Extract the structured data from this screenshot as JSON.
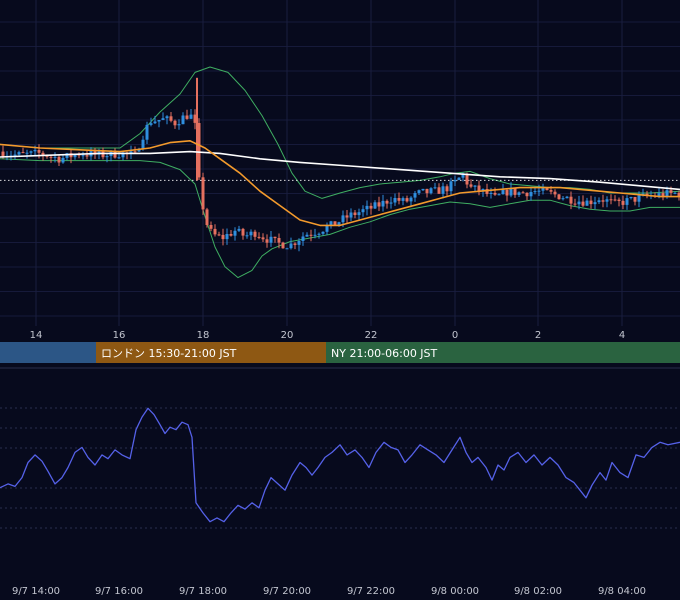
{
  "chart_data": [
    {
      "type": "candlestick",
      "title": "",
      "x_tick_labels": [
        "14",
        "16",
        "18",
        "20",
        "22",
        "0",
        "2",
        "4"
      ],
      "overlays": [
        {
          "name": "",
          "kind": "moving-average-fast",
          "color": "#f39a2c"
        },
        {
          "name": "",
          "kind": "moving-average-slow",
          "color": "#ffffff"
        },
        {
          "name": "",
          "kind": "bollinger-band",
          "color": "#3fae62"
        }
      ],
      "reference_line": {
        "style": "dotted",
        "color": "#ffffff",
        "level": 0.62
      },
      "colors": {
        "up": "#2f8fde",
        "down": "#e5705f"
      },
      "price_path": [
        [
          0,
          0.78
        ],
        [
          16,
          0.76
        ],
        [
          40,
          0.77
        ],
        [
          60,
          0.74
        ],
        [
          80,
          0.77
        ],
        [
          100,
          0.76
        ],
        [
          120,
          0.77
        ],
        [
          135,
          0.76
        ],
        [
          142,
          0.86
        ],
        [
          150,
          0.95
        ],
        [
          165,
          0.96
        ],
        [
          175,
          0.94
        ],
        [
          183,
          0.97
        ],
        [
          190,
          0.99
        ],
        [
          195,
          0.92
        ],
        [
          198,
          0.65
        ],
        [
          205,
          0.4
        ],
        [
          212,
          0.32
        ],
        [
          222,
          0.3
        ],
        [
          235,
          0.34
        ],
        [
          245,
          0.31
        ],
        [
          255,
          0.33
        ],
        [
          265,
          0.3
        ],
        [
          278,
          0.27
        ],
        [
          290,
          0.26
        ],
        [
          305,
          0.32
        ],
        [
          318,
          0.34
        ],
        [
          332,
          0.37
        ],
        [
          348,
          0.42
        ],
        [
          362,
          0.45
        ],
        [
          378,
          0.48
        ],
        [
          392,
          0.52
        ],
        [
          405,
          0.5
        ],
        [
          420,
          0.55
        ],
        [
          436,
          0.56
        ],
        [
          448,
          0.58
        ],
        [
          458,
          0.62
        ],
        [
          462,
          0.66
        ],
        [
          470,
          0.58
        ],
        [
          482,
          0.56
        ],
        [
          495,
          0.52
        ],
        [
          508,
          0.56
        ],
        [
          520,
          0.55
        ],
        [
          535,
          0.56
        ],
        [
          548,
          0.55
        ],
        [
          562,
          0.53
        ],
        [
          575,
          0.51
        ],
        [
          588,
          0.5
        ],
        [
          600,
          0.52
        ],
        [
          615,
          0.49
        ],
        [
          630,
          0.51
        ],
        [
          645,
          0.53
        ],
        [
          660,
          0.54
        ],
        [
          680,
          0.55
        ]
      ],
      "fast_ma": [
        [
          0,
          0.82
        ],
        [
          40,
          0.8
        ],
        [
          80,
          0.79
        ],
        [
          120,
          0.78
        ],
        [
          150,
          0.8
        ],
        [
          170,
          0.83
        ],
        [
          190,
          0.84
        ],
        [
          205,
          0.8
        ],
        [
          220,
          0.74
        ],
        [
          240,
          0.66
        ],
        [
          260,
          0.56
        ],
        [
          280,
          0.48
        ],
        [
          300,
          0.4
        ],
        [
          320,
          0.37
        ],
        [
          340,
          0.37
        ],
        [
          360,
          0.4
        ],
        [
          380,
          0.43
        ],
        [
          400,
          0.46
        ],
        [
          420,
          0.49
        ],
        [
          440,
          0.52
        ],
        [
          460,
          0.55
        ],
        [
          480,
          0.56
        ],
        [
          500,
          0.57
        ],
        [
          520,
          0.58
        ],
        [
          540,
          0.58
        ],
        [
          560,
          0.58
        ],
        [
          580,
          0.57
        ],
        [
          600,
          0.56
        ],
        [
          620,
          0.55
        ],
        [
          640,
          0.54
        ],
        [
          660,
          0.53
        ],
        [
          680,
          0.53
        ]
      ],
      "slow_ma": [
        [
          0,
          0.75
        ],
        [
          50,
          0.76
        ],
        [
          100,
          0.77
        ],
        [
          150,
          0.77
        ],
        [
          190,
          0.78
        ],
        [
          220,
          0.77
        ],
        [
          260,
          0.74
        ],
        [
          300,
          0.72
        ],
        [
          350,
          0.7
        ],
        [
          400,
          0.68
        ],
        [
          450,
          0.66
        ],
        [
          500,
          0.64
        ],
        [
          550,
          0.63
        ],
        [
          600,
          0.61
        ],
        [
          640,
          0.59
        ],
        [
          680,
          0.57
        ]
      ],
      "bb_upper": [
        [
          0,
          0.82
        ],
        [
          40,
          0.8
        ],
        [
          80,
          0.8
        ],
        [
          120,
          0.8
        ],
        [
          140,
          0.88
        ],
        [
          160,
          1.0
        ],
        [
          180,
          1.1
        ],
        [
          195,
          1.22
        ],
        [
          210,
          1.25
        ],
        [
          228,
          1.22
        ],
        [
          245,
          1.12
        ],
        [
          262,
          0.98
        ],
        [
          278,
          0.82
        ],
        [
          292,
          0.66
        ],
        [
          305,
          0.56
        ],
        [
          322,
          0.52
        ],
        [
          340,
          0.55
        ],
        [
          360,
          0.58
        ],
        [
          380,
          0.6
        ],
        [
          400,
          0.61
        ],
        [
          420,
          0.62
        ],
        [
          440,
          0.64
        ],
        [
          455,
          0.66
        ],
        [
          470,
          0.67
        ],
        [
          490,
          0.63
        ],
        [
          510,
          0.6
        ],
        [
          530,
          0.59
        ],
        [
          550,
          0.58
        ],
        [
          570,
          0.58
        ],
        [
          590,
          0.57
        ],
        [
          610,
          0.55
        ],
        [
          630,
          0.55
        ],
        [
          650,
          0.55
        ],
        [
          680,
          0.56
        ]
      ],
      "bb_lower": [
        [
          0,
          0.74
        ],
        [
          40,
          0.73
        ],
        [
          80,
          0.73
        ],
        [
          120,
          0.73
        ],
        [
          140,
          0.73
        ],
        [
          160,
          0.72
        ],
        [
          180,
          0.68
        ],
        [
          195,
          0.6
        ],
        [
          205,
          0.42
        ],
        [
          215,
          0.25
        ],
        [
          225,
          0.14
        ],
        [
          238,
          0.08
        ],
        [
          252,
          0.12
        ],
        [
          262,
          0.2
        ],
        [
          272,
          0.24
        ],
        [
          290,
          0.28
        ],
        [
          310,
          0.3
        ],
        [
          330,
          0.32
        ],
        [
          350,
          0.36
        ],
        [
          370,
          0.39
        ],
        [
          390,
          0.43
        ],
        [
          410,
          0.46
        ],
        [
          430,
          0.48
        ],
        [
          450,
          0.5
        ],
        [
          470,
          0.49
        ],
        [
          490,
          0.47
        ],
        [
          510,
          0.49
        ],
        [
          530,
          0.51
        ],
        [
          550,
          0.51
        ],
        [
          570,
          0.48
        ],
        [
          590,
          0.46
        ],
        [
          610,
          0.45
        ],
        [
          630,
          0.45
        ],
        [
          650,
          0.47
        ],
        [
          680,
          0.47
        ]
      ]
    },
    {
      "type": "line",
      "title": "",
      "x_tick_labels": [
        "9/7 14:00",
        "9/7 16:00",
        "9/7 18:00",
        "9/7 20:00",
        "9/7 22:00",
        "9/8 00:00",
        "9/8 02:00",
        "9/8 04:00"
      ],
      "color": "#5561e8",
      "series": [
        [
          0,
          0.32
        ],
        [
          8,
          0.35
        ],
        [
          15,
          0.33
        ],
        [
          22,
          0.4
        ],
        [
          28,
          0.52
        ],
        [
          35,
          0.58
        ],
        [
          42,
          0.53
        ],
        [
          48,
          0.45
        ],
        [
          55,
          0.35
        ],
        [
          62,
          0.4
        ],
        [
          68,
          0.48
        ],
        [
          75,
          0.6
        ],
        [
          82,
          0.64
        ],
        [
          88,
          0.56
        ],
        [
          95,
          0.5
        ],
        [
          102,
          0.58
        ],
        [
          108,
          0.55
        ],
        [
          115,
          0.62
        ],
        [
          122,
          0.58
        ],
        [
          130,
          0.55
        ],
        [
          136,
          0.78
        ],
        [
          142,
          0.88
        ],
        [
          148,
          0.95
        ],
        [
          154,
          0.9
        ],
        [
          160,
          0.82
        ],
        [
          165,
          0.75
        ],
        [
          170,
          0.8
        ],
        [
          176,
          0.78
        ],
        [
          182,
          0.84
        ],
        [
          188,
          0.82
        ],
        [
          192,
          0.72
        ],
        [
          196,
          0.2
        ],
        [
          203,
          0.12
        ],
        [
          210,
          0.05
        ],
        [
          217,
          0.08
        ],
        [
          224,
          0.05
        ],
        [
          231,
          0.12
        ],
        [
          238,
          0.18
        ],
        [
          245,
          0.15
        ],
        [
          252,
          0.2
        ],
        [
          259,
          0.16
        ],
        [
          265,
          0.3
        ],
        [
          271,
          0.4
        ],
        [
          278,
          0.35
        ],
        [
          285,
          0.3
        ],
        [
          292,
          0.42
        ],
        [
          300,
          0.52
        ],
        [
          306,
          0.48
        ],
        [
          312,
          0.42
        ],
        [
          318,
          0.48
        ],
        [
          325,
          0.56
        ],
        [
          332,
          0.6
        ],
        [
          340,
          0.66
        ],
        [
          347,
          0.58
        ],
        [
          355,
          0.62
        ],
        [
          362,
          0.56
        ],
        [
          369,
          0.48
        ],
        [
          376,
          0.6
        ],
        [
          384,
          0.68
        ],
        [
          391,
          0.64
        ],
        [
          398,
          0.62
        ],
        [
          405,
          0.52
        ],
        [
          412,
          0.58
        ],
        [
          420,
          0.66
        ],
        [
          428,
          0.62
        ],
        [
          436,
          0.58
        ],
        [
          444,
          0.52
        ],
        [
          452,
          0.62
        ],
        [
          460,
          0.72
        ],
        [
          466,
          0.6
        ],
        [
          472,
          0.52
        ],
        [
          478,
          0.56
        ],
        [
          486,
          0.48
        ],
        [
          492,
          0.38
        ],
        [
          498,
          0.5
        ],
        [
          504,
          0.46
        ],
        [
          510,
          0.56
        ],
        [
          518,
          0.6
        ],
        [
          526,
          0.52
        ],
        [
          534,
          0.58
        ],
        [
          542,
          0.5
        ],
        [
          550,
          0.56
        ],
        [
          558,
          0.5
        ],
        [
          566,
          0.4
        ],
        [
          574,
          0.36
        ],
        [
          580,
          0.3
        ],
        [
          586,
          0.24
        ],
        [
          592,
          0.34
        ],
        [
          600,
          0.44
        ],
        [
          606,
          0.38
        ],
        [
          612,
          0.52
        ],
        [
          620,
          0.44
        ],
        [
          628,
          0.4
        ],
        [
          636,
          0.58
        ],
        [
          644,
          0.56
        ],
        [
          652,
          0.64
        ],
        [
          660,
          0.68
        ],
        [
          668,
          0.66
        ],
        [
          680,
          0.68
        ]
      ]
    }
  ],
  "sessions": [
    {
      "label": "",
      "color": "#2c5686"
    },
    {
      "label": "ロンドン 15:30-21:00 JST",
      "color": "#8e5813"
    },
    {
      "label": "NY 21:00-06:00 JST",
      "color": "#2a6340"
    }
  ]
}
